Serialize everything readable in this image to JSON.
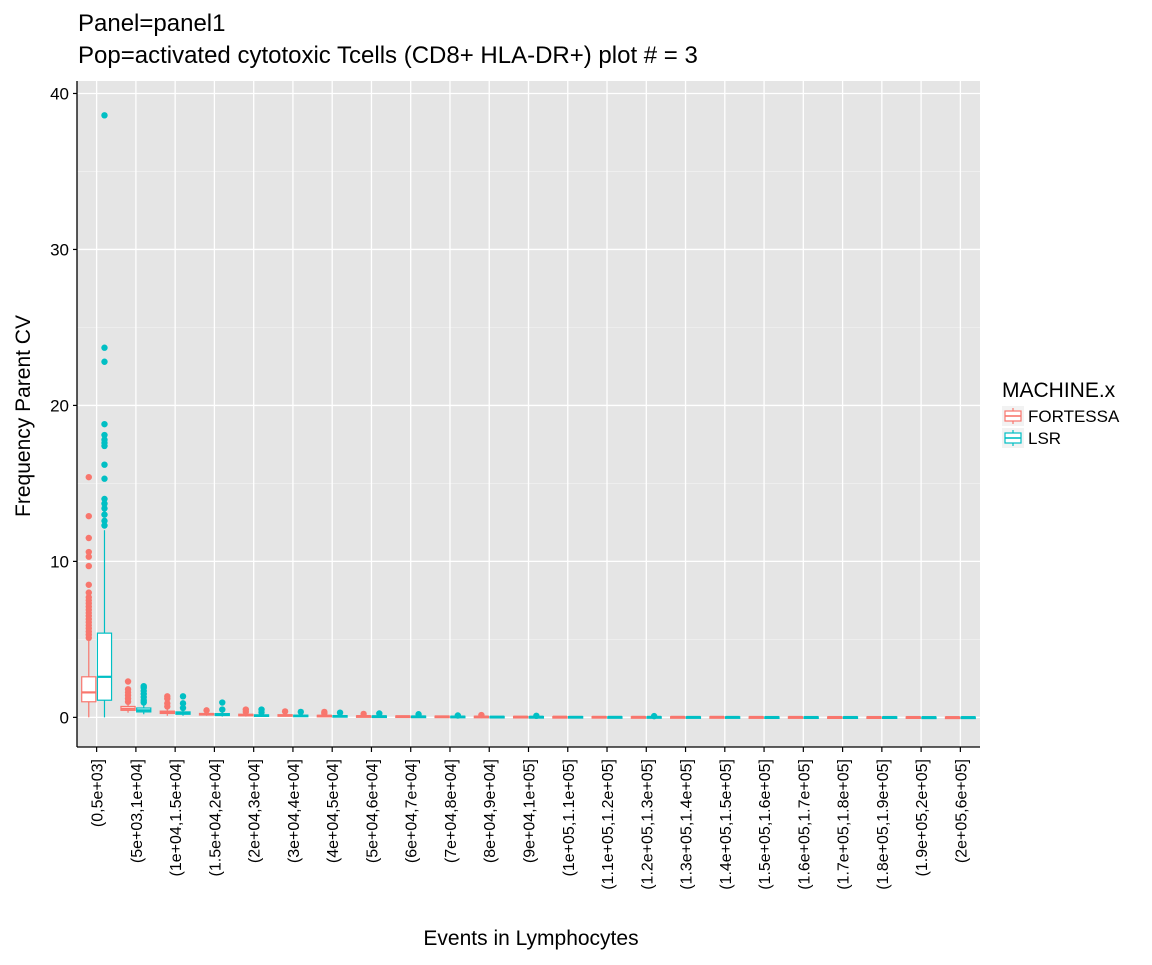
{
  "chart_data": {
    "type": "box",
    "title": "Panel=panel1",
    "subtitle": "Pop=activated cytotoxic Tcells (CD8+ HLA-DR+) plot # = 3",
    "xlabel": "Events in Lymphocytes",
    "ylabel": "Frequency Parent CV",
    "ylim": [
      -1.9,
      40.8
    ],
    "yticks": [
      0,
      10,
      20,
      30,
      40
    ],
    "grid": true,
    "legend": {
      "title": "MACHINE.x",
      "position": "right"
    },
    "categories": [
      "(0,5e+03]",
      "(5e+03,1e+04]",
      "(1e+04,1.5e+04]",
      "(1.5e+04,2e+04]",
      "(2e+04,3e+04]",
      "(3e+04,4e+04]",
      "(4e+04,5e+04]",
      "(5e+04,6e+04]",
      "(6e+04,7e+04]",
      "(7e+04,8e+04]",
      "(8e+04,9e+04]",
      "(9e+04,1e+05]",
      "(1e+05,1.1e+05]",
      "(1.1e+05,1.2e+05]",
      "(1.2e+05,1.3e+05]",
      "(1.3e+05,1.4e+05]",
      "(1.4e+05,1.5e+05]",
      "(1.5e+05,1.6e+05]",
      "(1.6e+05,1.7e+05]",
      "(1.7e+05,1.8e+05]",
      "(1.8e+05,1.9e+05]",
      "(1.9e+05,2e+05]",
      "(2e+05,6e+05]"
    ],
    "series": [
      {
        "name": "FORTESSA",
        "color": "#F8766D",
        "boxes": [
          {
            "cat": 0,
            "min": 0.0,
            "q1": 1.0,
            "median": 1.6,
            "q3": 2.6,
            "max": 5.0,
            "outliers": [
              5.1,
              5.3,
              5.5,
              5.7,
              5.9,
              6.1,
              6.3,
              6.5,
              6.7,
              6.9,
              7.1,
              7.3,
              7.5,
              7.7,
              8.0,
              8.5,
              9.7,
              10.3,
              10.6,
              11.5,
              12.9,
              15.4
            ]
          },
          {
            "cat": 1,
            "min": 0.3,
            "q1": 0.45,
            "median": 0.55,
            "q3": 0.7,
            "max": 0.95,
            "outliers": [
              1.0,
              1.2,
              1.4,
              1.6,
              1.8,
              2.3
            ]
          },
          {
            "cat": 2,
            "min": 0.1,
            "q1": 0.25,
            "median": 0.32,
            "q3": 0.4,
            "max": 0.55,
            "outliers": [
              0.7,
              0.9,
              1.2,
              1.35
            ]
          },
          {
            "cat": 3,
            "min": 0.1,
            "q1": 0.15,
            "median": 0.2,
            "q3": 0.25,
            "max": 0.3,
            "outliers": [
              0.45
            ]
          },
          {
            "cat": 4,
            "min": 0.05,
            "q1": 0.1,
            "median": 0.15,
            "q3": 0.2,
            "max": 0.28,
            "outliers": [
              0.35,
              0.5
            ]
          },
          {
            "cat": 5,
            "min": 0.05,
            "q1": 0.1,
            "median": 0.12,
            "q3": 0.17,
            "max": 0.24,
            "outliers": [
              0.38
            ]
          },
          {
            "cat": 6,
            "min": 0.03,
            "q1": 0.07,
            "median": 0.1,
            "q3": 0.13,
            "max": 0.18,
            "outliers": [
              0.25,
              0.35
            ]
          },
          {
            "cat": 7,
            "min": 0.02,
            "q1": 0.06,
            "median": 0.08,
            "q3": 0.1,
            "max": 0.14,
            "outliers": [
              0.22
            ]
          },
          {
            "cat": 8,
            "min": 0.02,
            "q1": 0.05,
            "median": 0.07,
            "q3": 0.09,
            "max": 0.12,
            "outliers": []
          },
          {
            "cat": 9,
            "min": 0.02,
            "q1": 0.04,
            "median": 0.06,
            "q3": 0.08,
            "max": 0.1,
            "outliers": []
          },
          {
            "cat": 10,
            "min": 0.02,
            "q1": 0.04,
            "median": 0.05,
            "q3": 0.07,
            "max": 0.09,
            "outliers": [
              0.15
            ]
          },
          {
            "cat": 11,
            "min": 0.01,
            "q1": 0.03,
            "median": 0.04,
            "q3": 0.06,
            "max": 0.08,
            "outliers": []
          },
          {
            "cat": 12,
            "min": 0.01,
            "q1": 0.03,
            "median": 0.04,
            "q3": 0.05,
            "max": 0.07,
            "outliers": []
          },
          {
            "cat": 13,
            "min": 0.01,
            "q1": 0.02,
            "median": 0.03,
            "q3": 0.05,
            "max": 0.06,
            "outliers": []
          },
          {
            "cat": 14,
            "min": 0.01,
            "q1": 0.02,
            "median": 0.03,
            "q3": 0.04,
            "max": 0.05,
            "outliers": []
          },
          {
            "cat": 15,
            "min": 0.01,
            "q1": 0.02,
            "median": 0.03,
            "q3": 0.04,
            "max": 0.05,
            "outliers": []
          },
          {
            "cat": 16,
            "min": 0.01,
            "q1": 0.02,
            "median": 0.03,
            "q3": 0.04,
            "max": 0.05,
            "outliers": []
          },
          {
            "cat": 17,
            "min": 0.01,
            "q1": 0.02,
            "median": 0.025,
            "q3": 0.035,
            "max": 0.045,
            "outliers": []
          },
          {
            "cat": 18,
            "min": 0.01,
            "q1": 0.02,
            "median": 0.025,
            "q3": 0.035,
            "max": 0.045,
            "outliers": []
          },
          {
            "cat": 19,
            "min": 0.01,
            "q1": 0.015,
            "median": 0.02,
            "q3": 0.03,
            "max": 0.04,
            "outliers": []
          },
          {
            "cat": 20,
            "min": 0.01,
            "q1": 0.015,
            "median": 0.02,
            "q3": 0.03,
            "max": 0.04,
            "outliers": []
          },
          {
            "cat": 21,
            "min": 0.01,
            "q1": 0.015,
            "median": 0.02,
            "q3": 0.03,
            "max": 0.04,
            "outliers": []
          },
          {
            "cat": 22,
            "min": 0.005,
            "q1": 0.01,
            "median": 0.015,
            "q3": 0.02,
            "max": 0.03,
            "outliers": []
          }
        ]
      },
      {
        "name": "LSR",
        "color": "#00BFC4",
        "boxes": [
          {
            "cat": 0,
            "min": 0.0,
            "q1": 1.1,
            "median": 2.6,
            "q3": 5.4,
            "max": 12.0,
            "outliers": [
              12.3,
              12.6,
              13.0,
              13.4,
              13.7,
              14.0,
              15.3,
              16.2,
              17.4,
              17.6,
              17.8,
              18.1,
              18.8,
              22.8,
              23.7,
              38.6
            ]
          },
          {
            "cat": 1,
            "min": 0.2,
            "q1": 0.35,
            "median": 0.45,
            "q3": 0.6,
            "max": 0.85,
            "outliers": [
              0.95,
              1.1,
              1.3,
              1.5,
              1.7,
              1.9,
              2.0
            ]
          },
          {
            "cat": 2,
            "min": 0.1,
            "q1": 0.2,
            "median": 0.28,
            "q3": 0.35,
            "max": 0.5,
            "outliers": [
              0.6,
              0.9,
              1.35
            ]
          },
          {
            "cat": 3,
            "min": 0.05,
            "q1": 0.12,
            "median": 0.18,
            "q3": 0.24,
            "max": 0.32,
            "outliers": [
              0.5,
              0.95
            ]
          },
          {
            "cat": 4,
            "min": 0.04,
            "q1": 0.08,
            "median": 0.12,
            "q3": 0.16,
            "max": 0.24,
            "outliers": [
              0.32,
              0.5
            ]
          },
          {
            "cat": 5,
            "min": 0.03,
            "q1": 0.07,
            "median": 0.1,
            "q3": 0.14,
            "max": 0.2,
            "outliers": [
              0.35
            ]
          },
          {
            "cat": 6,
            "min": 0.03,
            "q1": 0.06,
            "median": 0.08,
            "q3": 0.11,
            "max": 0.16,
            "outliers": [
              0.3
            ]
          },
          {
            "cat": 7,
            "min": 0.02,
            "q1": 0.05,
            "median": 0.07,
            "q3": 0.09,
            "max": 0.13,
            "outliers": [
              0.25
            ]
          },
          {
            "cat": 8,
            "min": 0.02,
            "q1": 0.04,
            "median": 0.06,
            "q3": 0.08,
            "max": 0.11,
            "outliers": [
              0.2
            ]
          },
          {
            "cat": 9,
            "min": 0.02,
            "q1": 0.04,
            "median": 0.05,
            "q3": 0.07,
            "max": 0.1,
            "outliers": [
              0.12
            ]
          },
          {
            "cat": 10,
            "min": 0.01,
            "q1": 0.03,
            "median": 0.04,
            "q3": 0.06,
            "max": 0.08,
            "outliers": []
          },
          {
            "cat": 11,
            "min": 0.01,
            "q1": 0.03,
            "median": 0.04,
            "q3": 0.05,
            "max": 0.07,
            "outliers": [
              0.1
            ]
          },
          {
            "cat": 12,
            "min": 0.01,
            "q1": 0.02,
            "median": 0.03,
            "q3": 0.05,
            "max": 0.06,
            "outliers": []
          },
          {
            "cat": 13,
            "min": 0.01,
            "q1": 0.02,
            "median": 0.03,
            "q3": 0.04,
            "max": 0.05,
            "outliers": []
          },
          {
            "cat": 14,
            "min": 0.01,
            "q1": 0.02,
            "median": 0.03,
            "q3": 0.04,
            "max": 0.05,
            "outliers": [
              0.08
            ]
          },
          {
            "cat": 15,
            "min": 0.01,
            "q1": 0.02,
            "median": 0.025,
            "q3": 0.035,
            "max": 0.045,
            "outliers": []
          },
          {
            "cat": 16,
            "min": 0.01,
            "q1": 0.02,
            "median": 0.025,
            "q3": 0.035,
            "max": 0.045,
            "outliers": []
          },
          {
            "cat": 17,
            "min": 0.01,
            "q1": 0.015,
            "median": 0.02,
            "q3": 0.03,
            "max": 0.04,
            "outliers": []
          },
          {
            "cat": 18,
            "min": 0.01,
            "q1": 0.015,
            "median": 0.02,
            "q3": 0.03,
            "max": 0.04,
            "outliers": []
          },
          {
            "cat": 19,
            "min": 0.01,
            "q1": 0.015,
            "median": 0.02,
            "q3": 0.03,
            "max": 0.04,
            "outliers": []
          },
          {
            "cat": 20,
            "min": 0.01,
            "q1": 0.015,
            "median": 0.02,
            "q3": 0.03,
            "max": 0.04,
            "outliers": []
          },
          {
            "cat": 21,
            "min": 0.005,
            "q1": 0.01,
            "median": 0.015,
            "q3": 0.02,
            "max": 0.03,
            "outliers": []
          },
          {
            "cat": 22,
            "min": 0.005,
            "q1": 0.01,
            "median": 0.015,
            "q3": 0.02,
            "max": 0.03,
            "outliers": []
          }
        ]
      }
    ]
  }
}
